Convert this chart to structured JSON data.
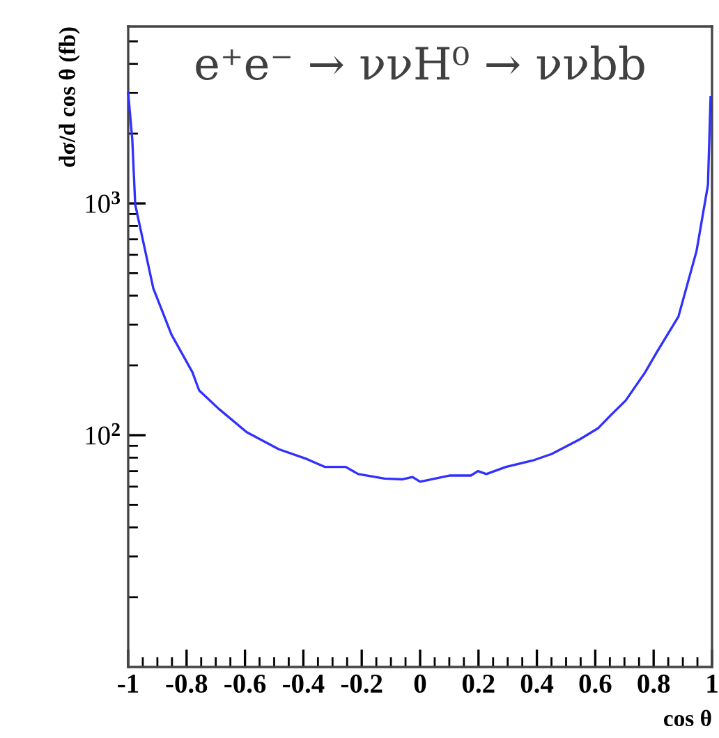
{
  "chart_data": {
    "type": "line",
    "title": "e⁺e⁻ → ννH⁰ → ννbb",
    "xlabel": "cos θ",
    "ylabel": "dσ/d cos θ (fb)",
    "log": "y",
    "grid": false,
    "legend": false,
    "marker": "none",
    "line_style": "solid",
    "xlim": [
      -1,
      1
    ],
    "xticks": [
      -1,
      -0.8,
      -0.6,
      -0.4,
      -0.2,
      0,
      0.2,
      0.4,
      0.6,
      0.8,
      1
    ],
    "ylim": [
      10,
      5800
    ],
    "yticks": [
      {
        "value": 100,
        "label": "10$^{2}$"
      },
      {
        "value": 1000,
        "label": "10$^{3}$"
      }
    ],
    "series": [
      {
        "color": "#3030ff",
        "x": [
          -1,
          -0.986,
          -0.976,
          -0.914,
          -0.852,
          -0.78,
          -0.757,
          -0.69,
          -0.594,
          -0.484,
          -0.389,
          -0.327,
          -0.255,
          -0.212,
          -0.122,
          -0.06,
          -0.026,
          0.0,
          0.103,
          0.174,
          0.198,
          0.227,
          0.294,
          0.389,
          0.451,
          0.547,
          0.609,
          0.656,
          0.704,
          0.771,
          0.809,
          0.885,
          0.947,
          0.986,
          0.995
        ],
        "values": [
          2990,
          1890,
          990,
          430,
          272,
          187,
          156,
          130,
          103,
          87,
          79,
          73,
          73,
          68,
          65,
          64.5,
          66,
          63,
          67,
          67,
          70,
          68,
          73,
          78,
          83,
          96,
          107,
          123,
          141,
          187,
          226,
          325,
          624,
          1200,
          2870
        ]
      }
    ]
  }
}
